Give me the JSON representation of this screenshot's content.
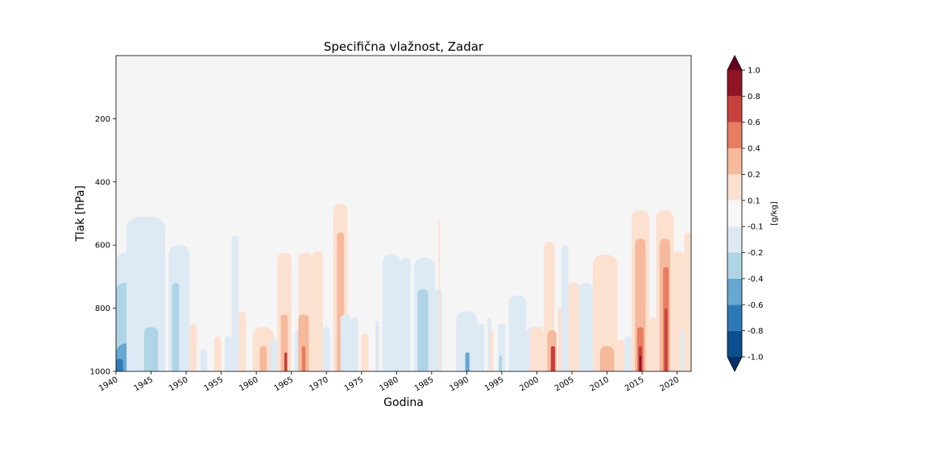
{
  "chart_data": {
    "type": "heatmap",
    "title": "Specifična vlažnost, Zadar",
    "xlabel": "Godina",
    "ylabel": "Tlak [hPa]",
    "xlim": [
      1940,
      2022
    ],
    "ylim": [
      1000,
      0
    ],
    "x_ticks": [
      "1940",
      "1945",
      "1950",
      "1955",
      "1960",
      "1965",
      "1970",
      "1975",
      "1980",
      "1985",
      "1990",
      "1995",
      "2000",
      "2005",
      "2010",
      "2015",
      "2020"
    ],
    "y_ticks": [
      "200",
      "400",
      "600",
      "800",
      "1000"
    ],
    "colorbar": {
      "label": "[g/kg]",
      "levels": [
        "-1.0",
        "-0.8",
        "-0.6",
        "-0.4",
        "-0.2",
        "-0.1",
        "0.1",
        "0.2",
        "0.4",
        "0.6",
        "0.8",
        "1.0"
      ],
      "colors": [
        "#08306b",
        "#0b4f8f",
        "#2e7ab8",
        "#66a8d1",
        "#aed4e6",
        "#dde9f3",
        "#f7f7f7",
        "#fce0d0",
        "#f6b99b",
        "#e77d61",
        "#c8403b",
        "#8f1525",
        "#67001f"
      ]
    },
    "background_color": "#f5f5f5",
    "anomalies": [
      {
        "year_start": 1940.0,
        "year_end": 1944.5,
        "p_top": 620,
        "value": -0.15
      },
      {
        "year_start": 1940.0,
        "year_end": 1942.5,
        "p_top": 720,
        "value": -0.3
      },
      {
        "year_start": 1940.0,
        "year_end": 1944.0,
        "p_top": 910,
        "value": -0.5
      },
      {
        "year_start": 1940.0,
        "year_end": 1941.0,
        "p_top": 960,
        "value": -0.7
      },
      {
        "year_start": 1941.5,
        "year_end": 1947.0,
        "p_top": 510,
        "value": -0.15
      },
      {
        "year_start": 1944.0,
        "year_end": 1946.0,
        "p_top": 860,
        "value": -0.3
      },
      {
        "year_start": 1947.5,
        "year_end": 1950.5,
        "p_top": 600,
        "value": -0.15
      },
      {
        "year_start": 1948.0,
        "year_end": 1949.0,
        "p_top": 720,
        "value": -0.3
      },
      {
        "year_start": 1950.5,
        "year_end": 1951.5,
        "p_top": 850,
        "value": 0.15
      },
      {
        "year_start": 1952.0,
        "year_end": 1953.0,
        "p_top": 930,
        "value": -0.15
      },
      {
        "year_start": 1954.0,
        "year_end": 1955.0,
        "p_top": 890,
        "value": 0.15
      },
      {
        "year_start": 1955.5,
        "year_end": 1956.5,
        "p_top": 890,
        "value": -0.15
      },
      {
        "year_start": 1956.5,
        "year_end": 1957.5,
        "p_top": 570,
        "value": -0.15
      },
      {
        "year_start": 1957.5,
        "year_end": 1958.5,
        "p_top": 810,
        "value": 0.15
      },
      {
        "year_start": 1959.5,
        "year_end": 1962.5,
        "p_top": 860,
        "value": 0.15
      },
      {
        "year_start": 1960.5,
        "year_end": 1961.5,
        "p_top": 920,
        "value": 0.3
      },
      {
        "year_start": 1962.0,
        "year_end": 1963.0,
        "p_top": 900,
        "value": -0.15
      },
      {
        "year_start": 1963.0,
        "year_end": 1965.0,
        "p_top": 625,
        "value": 0.15
      },
      {
        "year_start": 1963.5,
        "year_end": 1964.5,
        "p_top": 820,
        "value": 0.3
      },
      {
        "year_start": 1964.0,
        "year_end": 1964.4,
        "p_top": 940,
        "value": 0.7
      },
      {
        "year_start": 1965.5,
        "year_end": 1966.5,
        "p_top": 870,
        "value": -0.15
      },
      {
        "year_start": 1966.0,
        "year_end": 1968.0,
        "p_top": 625,
        "value": 0.15
      },
      {
        "year_start": 1966.0,
        "year_end": 1967.5,
        "p_top": 820,
        "value": 0.3
      },
      {
        "year_start": 1966.5,
        "year_end": 1967.0,
        "p_top": 920,
        "value": 0.5
      },
      {
        "year_start": 1968.0,
        "year_end": 1969.5,
        "p_top": 620,
        "value": 0.15
      },
      {
        "year_start": 1969.5,
        "year_end": 1970.5,
        "p_top": 860,
        "value": -0.15
      },
      {
        "year_start": 1971.0,
        "year_end": 1973.0,
        "p_top": 470,
        "value": 0.15
      },
      {
        "year_start": 1971.5,
        "year_end": 1972.5,
        "p_top": 560,
        "value": 0.3
      },
      {
        "year_start": 1972.0,
        "year_end": 1972.4,
        "p_top": 880,
        "value": 0.5
      },
      {
        "year_start": 1972.0,
        "year_end": 1973.5,
        "p_top": 820,
        "value": -0.15
      },
      {
        "year_start": 1973.5,
        "year_end": 1974.5,
        "p_top": 830,
        "value": -0.15
      },
      {
        "year_start": 1975.0,
        "year_end": 1976.0,
        "p_top": 880,
        "value": 0.15
      },
      {
        "year_start": 1977.0,
        "year_end": 1977.5,
        "p_top": 840,
        "value": -0.15
      },
      {
        "year_start": 1978.0,
        "year_end": 1980.5,
        "p_top": 630,
        "value": -0.15
      },
      {
        "year_start": 1980.5,
        "year_end": 1982.0,
        "p_top": 640,
        "value": -0.15
      },
      {
        "year_start": 1982.5,
        "year_end": 1985.5,
        "p_top": 640,
        "value": -0.15
      },
      {
        "year_start": 1983.0,
        "year_end": 1984.5,
        "p_top": 740,
        "value": -0.3
      },
      {
        "year_start": 1985.0,
        "year_end": 1986.5,
        "p_top": 740,
        "value": -0.15
      },
      {
        "year_start": 1986.0,
        "year_end": 1986.2,
        "p_top": 520,
        "value": 0.15
      },
      {
        "year_start": 1988.5,
        "year_end": 1991.5,
        "p_top": 810,
        "value": -0.15
      },
      {
        "year_start": 1989.8,
        "year_end": 1990.4,
        "p_top": 940,
        "value": -0.5
      },
      {
        "year_start": 1991.5,
        "year_end": 1992.5,
        "p_top": 850,
        "value": -0.15
      },
      {
        "year_start": 1993.0,
        "year_end": 1993.5,
        "p_top": 830,
        "value": -0.15
      },
      {
        "year_start": 1993.3,
        "year_end": 1993.8,
        "p_top": 870,
        "value": 0.15
      },
      {
        "year_start": 1994.5,
        "year_end": 1995.5,
        "p_top": 850,
        "value": -0.15
      },
      {
        "year_start": 1994.6,
        "year_end": 1995.0,
        "p_top": 950,
        "value": -0.4
      },
      {
        "year_start": 1996.0,
        "year_end": 1998.5,
        "p_top": 760,
        "value": -0.15
      },
      {
        "year_start": 1998.5,
        "year_end": 2000.5,
        "p_top": 860,
        "value": -0.15
      },
      {
        "year_start": 1999.0,
        "year_end": 2001.0,
        "p_top": 860,
        "value": 0.15
      },
      {
        "year_start": 2001.0,
        "year_end": 2002.5,
        "p_top": 590,
        "value": 0.15
      },
      {
        "year_start": 2001.5,
        "year_end": 2002.8,
        "p_top": 870,
        "value": 0.3
      },
      {
        "year_start": 2002.0,
        "year_end": 2002.6,
        "p_top": 920,
        "value": 0.7
      },
      {
        "year_start": 2003.0,
        "year_end": 2003.5,
        "p_top": 800,
        "value": 0.15
      },
      {
        "year_start": 2003.5,
        "year_end": 2004.5,
        "p_top": 600,
        "value": -0.15
      },
      {
        "year_start": 2004.5,
        "year_end": 2006.0,
        "p_top": 720,
        "value": 0.15
      },
      {
        "year_start": 2006.0,
        "year_end": 2008.0,
        "p_top": 720,
        "value": -0.15
      },
      {
        "year_start": 2008.0,
        "year_end": 2011.5,
        "p_top": 630,
        "value": 0.15
      },
      {
        "year_start": 2009.0,
        "year_end": 2011.0,
        "p_top": 920,
        "value": 0.3
      },
      {
        "year_start": 2011.5,
        "year_end": 2012.5,
        "p_top": 900,
        "value": 0.15
      },
      {
        "year_start": 2012.5,
        "year_end": 2013.5,
        "p_top": 890,
        "value": -0.15
      },
      {
        "year_start": 2013.5,
        "year_end": 2016.0,
        "p_top": 490,
        "value": 0.15
      },
      {
        "year_start": 2014.0,
        "year_end": 2015.5,
        "p_top": 580,
        "value": 0.3
      },
      {
        "year_start": 2014.3,
        "year_end": 2015.2,
        "p_top": 860,
        "value": 0.5
      },
      {
        "year_start": 2014.5,
        "year_end": 2015.0,
        "p_top": 920,
        "value": 0.7
      },
      {
        "year_start": 2014.6,
        "year_end": 2014.9,
        "p_top": 950,
        "value": 0.9
      },
      {
        "year_start": 2016.0,
        "year_end": 2017.0,
        "p_top": 830,
        "value": 0.15
      },
      {
        "year_start": 2017.0,
        "year_end": 2019.5,
        "p_top": 490,
        "value": 0.15
      },
      {
        "year_start": 2017.5,
        "year_end": 2019.0,
        "p_top": 580,
        "value": 0.3
      },
      {
        "year_start": 2018.0,
        "year_end": 2018.8,
        "p_top": 670,
        "value": 0.5
      },
      {
        "year_start": 2018.2,
        "year_end": 2018.6,
        "p_top": 800,
        "value": 0.7
      },
      {
        "year_start": 2019.5,
        "year_end": 2021.0,
        "p_top": 620,
        "value": 0.15
      },
      {
        "year_start": 2020.5,
        "year_end": 2021.5,
        "p_top": 870,
        "value": -0.15
      },
      {
        "year_start": 2021.0,
        "year_end": 2022.0,
        "p_top": 560,
        "value": 0.15
      }
    ]
  }
}
